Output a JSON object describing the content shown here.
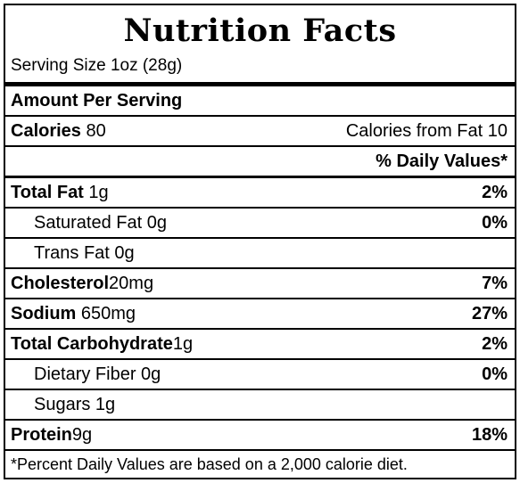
{
  "title": "Nutrition Facts",
  "serving_size": "Serving Size 1oz (28g)",
  "amount_per_serving": "Amount Per Serving",
  "calories": {
    "label": "Calories",
    "value": "80",
    "from_fat": "Calories from Fat 10"
  },
  "daily_values_header": "% Daily Values*",
  "nutrients": [
    {
      "label": "Total Fat",
      "amount": "1g",
      "dv": "2%"
    },
    {
      "label": "Saturated Fat 0g",
      "dv": "0%"
    },
    {
      "label": "Trans Fat 0g",
      "dv": ""
    },
    {
      "label": "Cholesterol",
      "amount": "20mg",
      "dv": "7%"
    },
    {
      "label": "Sodium",
      "amount": "650mg",
      "dv": "27%"
    },
    {
      "label": "Total Carbohydrate",
      "amount": "1g",
      "dv": "2%"
    },
    {
      "label": "Dietary Fiber 0g",
      "dv": "0%"
    },
    {
      "label": "Sugars 1g",
      "dv": ""
    },
    {
      "label": "Protein",
      "amount": "9g",
      "dv": "18%"
    }
  ],
  "footnote": "*Percent Daily Values are based on a 2,000 calorie diet."
}
